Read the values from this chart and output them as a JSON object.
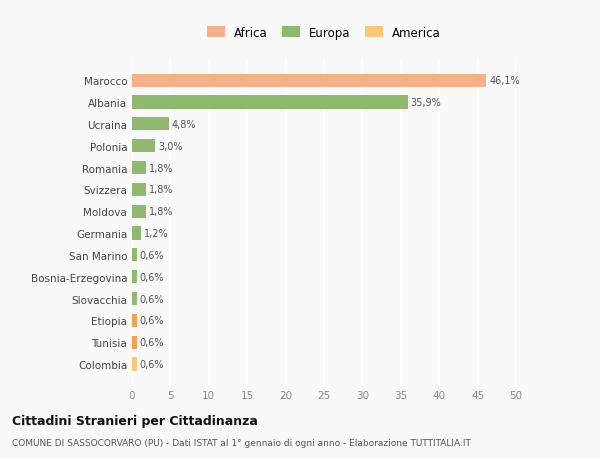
{
  "categories": [
    "Colombia",
    "Tunisia",
    "Etiopia",
    "Slovacchia",
    "Bosnia-Erzegovina",
    "San Marino",
    "Germania",
    "Moldova",
    "Svizzera",
    "Romania",
    "Polonia",
    "Ucraina",
    "Albania",
    "Marocco"
  ],
  "values": [
    0.6,
    0.6,
    0.6,
    0.6,
    0.6,
    0.6,
    1.2,
    1.8,
    1.8,
    1.8,
    3.0,
    4.8,
    35.9,
    46.1
  ],
  "colors": [
    "#f5c87a",
    "#f5a050",
    "#f5a050",
    "#91b870",
    "#91b870",
    "#91b870",
    "#91b870",
    "#91b870",
    "#91b870",
    "#91b870",
    "#91b870",
    "#91b870",
    "#91b870",
    "#f5b08a"
  ],
  "labels": [
    "0,6%",
    "0,6%",
    "0,6%",
    "0,6%",
    "0,6%",
    "0,6%",
    "1,2%",
    "1,8%",
    "1,8%",
    "1,8%",
    "3,0%",
    "4,8%",
    "35,9%",
    "46,1%"
  ],
  "legend": [
    {
      "label": "Africa",
      "color": "#f5b08a"
    },
    {
      "label": "Europa",
      "color": "#91b870"
    },
    {
      "label": "America",
      "color": "#f5c87a"
    }
  ],
  "xlim": [
    0,
    50
  ],
  "xticks": [
    0,
    5,
    10,
    15,
    20,
    25,
    30,
    35,
    40,
    45,
    50
  ],
  "title": "Cittadini Stranieri per Cittadinanza",
  "subtitle": "COMUNE DI SASSOCORVARO (PU) - Dati ISTAT al 1° gennaio di ogni anno - Elaborazione TUTTITALIA.IT",
  "bg_color": "#f9f9f9",
  "grid_color": "#ffffff",
  "bar_height": 0.6
}
